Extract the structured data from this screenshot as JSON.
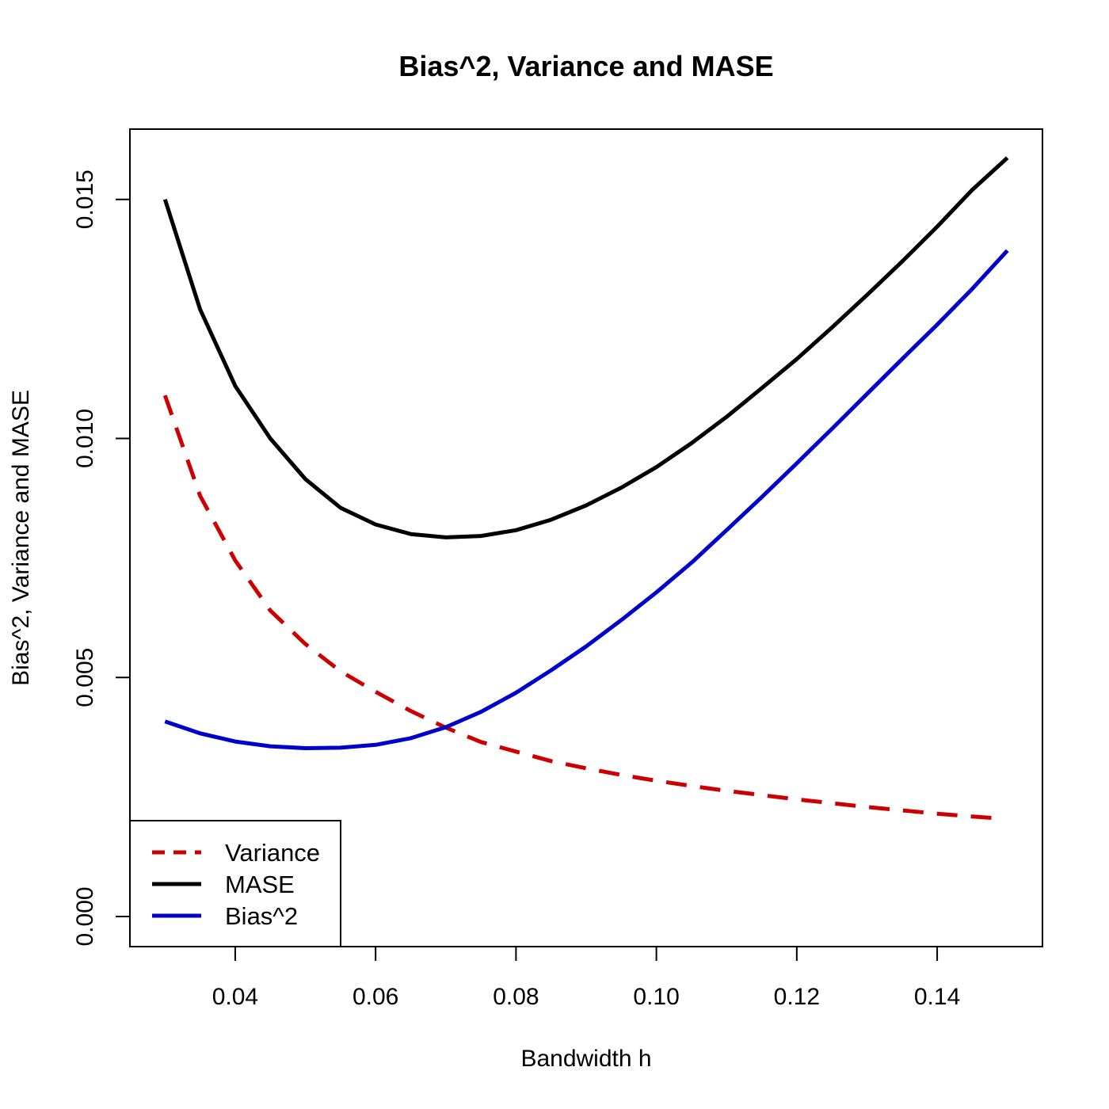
{
  "chart_data": {
    "type": "line",
    "title": "Bias^2, Variance and MASE",
    "xlabel": "Bandwidth h",
    "ylabel": "Bias^2, Variance and MASE",
    "xlim": [
      0.025,
      0.155
    ],
    "ylim": [
      -0.00063,
      0.01647
    ],
    "x_ticks": [
      0.04,
      0.06,
      0.08,
      0.1,
      0.12,
      0.14
    ],
    "x_tick_labels": [
      "0.04",
      "0.06",
      "0.08",
      "0.10",
      "0.12",
      "0.14"
    ],
    "y_ticks": [
      0.0,
      0.005,
      0.01,
      0.015
    ],
    "y_tick_labels": [
      "0.000",
      "0.005",
      "0.010",
      "0.015"
    ],
    "grid": false,
    "legend_position": "bottom-left",
    "series": [
      {
        "name": "Variance",
        "color": "#CC0000",
        "line_style": "dashed",
        "x": [
          0.03,
          0.035,
          0.04,
          0.045,
          0.05,
          0.055,
          0.06,
          0.065,
          0.07,
          0.075,
          0.08,
          0.085,
          0.09,
          0.095,
          0.1,
          0.105,
          0.11,
          0.115,
          0.12,
          0.125,
          0.13,
          0.135,
          0.14,
          0.145,
          0.148
        ],
        "y": [
          0.0109,
          0.0088,
          0.00745,
          0.0064,
          0.0057,
          0.00513,
          0.0047,
          0.0043,
          0.00395,
          0.00365,
          0.00345,
          0.00325,
          0.0031,
          0.00296,
          0.00284,
          0.00273,
          0.00263,
          0.00254,
          0.00245,
          0.00237,
          0.00229,
          0.00222,
          0.00215,
          0.00209,
          0.00206
        ]
      },
      {
        "name": "MASE",
        "color": "#000000",
        "line_style": "solid",
        "x": [
          0.03,
          0.035,
          0.04,
          0.045,
          0.05,
          0.055,
          0.06,
          0.065,
          0.07,
          0.075,
          0.08,
          0.085,
          0.09,
          0.095,
          0.1,
          0.105,
          0.11,
          0.115,
          0.12,
          0.125,
          0.13,
          0.135,
          0.14,
          0.145,
          0.15
        ],
        "y": [
          0.015,
          0.0127,
          0.0111,
          0.01,
          0.00915,
          0.00855,
          0.0082,
          0.008,
          0.00793,
          0.00796,
          0.00808,
          0.0083,
          0.0086,
          0.00897,
          0.0094,
          0.0099,
          0.01045,
          0.01105,
          0.01166,
          0.01232,
          0.013,
          0.0137,
          0.01443,
          0.0152,
          0.01587
        ]
      },
      {
        "name": "Bias^2",
        "color": "#0000CC",
        "line_style": "solid",
        "x": [
          0.03,
          0.035,
          0.04,
          0.045,
          0.05,
          0.055,
          0.06,
          0.065,
          0.07,
          0.075,
          0.08,
          0.085,
          0.09,
          0.095,
          0.1,
          0.105,
          0.11,
          0.115,
          0.12,
          0.125,
          0.13,
          0.135,
          0.14,
          0.145,
          0.15
        ],
        "y": [
          0.00408,
          0.00383,
          0.00366,
          0.00356,
          0.00352,
          0.00353,
          0.00359,
          0.00373,
          0.00396,
          0.00428,
          0.00468,
          0.00515,
          0.00565,
          0.0062,
          0.00678,
          0.0074,
          0.00808,
          0.00877,
          0.00948,
          0.0102,
          0.01093,
          0.01166,
          0.01238,
          0.01313,
          0.01393
        ]
      }
    ]
  },
  "legend": {
    "items": [
      "Variance",
      "MASE",
      "Bias^2"
    ]
  }
}
